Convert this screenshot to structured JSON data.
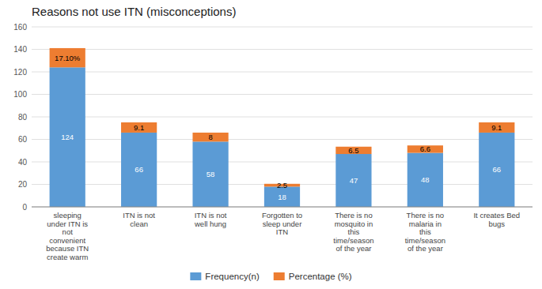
{
  "chart_data": {
    "type": "bar",
    "title": "Reasons not use ITN (misconceptions)",
    "categories": [
      "sleeping\nunder ITN is\nnot\nconvenient\nbecause ITN\ncreate warm",
      "ITN is not\nclean",
      "ITN is not\nwell hung",
      "Forgotten to\nsleep under\nITN",
      "There is no\nmosquito in\nthis\ntime/season\nof the year",
      "There is no\nmalaria  in\nthis\ntime/season\nof the year",
      "It creates Bed\nbugs"
    ],
    "series": [
      {
        "name": "Frequency(n)",
        "color": "#5B9BD5",
        "values": [
          124,
          66,
          58,
          18,
          47,
          48,
          66
        ]
      },
      {
        "name": "Percentage (%)",
        "color": "#ED7D31",
        "values": [
          17.1,
          9.1,
          8.0,
          2.5,
          6.5,
          6.6,
          9.1
        ],
        "value_labels": [
          "17.10%",
          "9.1",
          "8",
          "2.5",
          "6.5",
          "6.6",
          "9.1"
        ]
      }
    ],
    "stacked": true,
    "data_labels": true,
    "ylim": [
      0,
      160
    ],
    "yticks": [
      0,
      20,
      40,
      60,
      80,
      100,
      120,
      140,
      160
    ],
    "grid": true,
    "legend": "bottom"
  }
}
